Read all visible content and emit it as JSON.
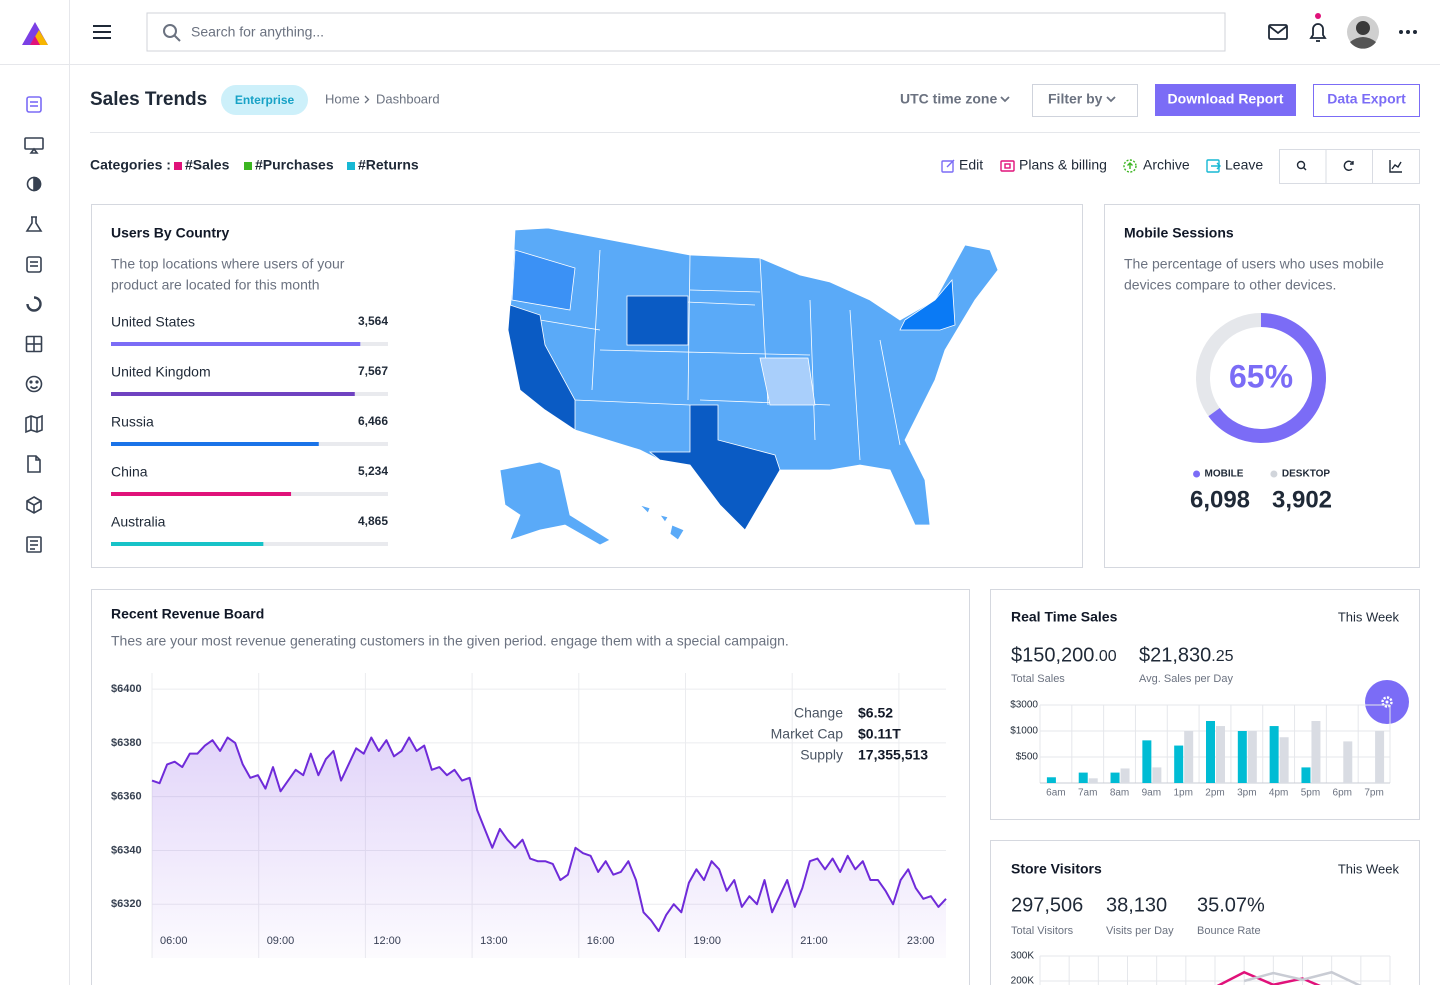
{
  "header": {
    "search_placeholder": "Search for anything..."
  },
  "page_header": {
    "title": "Sales Trends",
    "badge": "Enterprise",
    "breadcrumb": [
      "Home",
      "Dashboard"
    ],
    "timezone": "UTC time zone",
    "filter": "Filter by",
    "primary_button": "Download Report",
    "secondary_button": "Data Export"
  },
  "categories": {
    "label": "Categories :",
    "items": [
      {
        "name": "#Sales",
        "color": "#e0127a"
      },
      {
        "name": "#Purchases",
        "color": "#3cb521"
      },
      {
        "name": "#Returns",
        "color": "#17b8d4"
      }
    ]
  },
  "actions": [
    "Edit",
    "Plans & billing",
    "Archive",
    "Leave"
  ],
  "users_by_country": {
    "title": "Users By Country",
    "description": [
      "The top locations where users of your",
      "product are located for this month"
    ],
    "progress_range": [
      0,
      100
    ],
    "rows": [
      {
        "country": "United States",
        "users": "3,564",
        "progress": 90,
        "color": "#7b6cf6"
      },
      {
        "country": "United Kingdom",
        "users": "7,567",
        "progress": 88,
        "color": "#6f42c1"
      },
      {
        "country": "Russia",
        "users": "6,466",
        "progress": 75,
        "color": "#1a73e8"
      },
      {
        "country": "China",
        "users": "5,234",
        "progress": 65,
        "color": "#e0127a"
      },
      {
        "country": "Australia",
        "users": "4,865",
        "progress": 55,
        "color": "#17c3c8"
      }
    ]
  },
  "mobile_sessions": {
    "title": "Mobile Sessions",
    "description": [
      "The percentage of users who uses mobile",
      "devices compare to other devices."
    ],
    "chart": {
      "type": "donut",
      "value": 65,
      "value_label": "65%",
      "ylim": [
        0,
        100
      ],
      "color": "#7b6cf6",
      "track_color": "#e5e7eb"
    },
    "legend": [
      {
        "name": "MOBILE",
        "value": "6,098",
        "color": "#7b6cf6"
      },
      {
        "name": "DESKTOP",
        "value": "3,902",
        "color": "#d1d5db"
      }
    ]
  },
  "revenue_board": {
    "title": "Recent Revenue Board",
    "description": "Thes are your most revenue generating customers in the given period. engage them with a special campaign.",
    "chart": {
      "type": "line",
      "color": "#6f2bd9",
      "ylim": [
        6300,
        6406
      ],
      "yticks": [
        {
          "value": 6320,
          "label": "$6320"
        },
        {
          "value": 6340,
          "label": "$6340"
        },
        {
          "value": 6360,
          "label": "$6360"
        },
        {
          "value": 6380,
          "label": "$6380"
        },
        {
          "value": 6400,
          "label": "$6400"
        }
      ],
      "xticks": [
        "06:00",
        "09:00",
        "12:00",
        "13:00",
        "16:00",
        "19:00",
        "21:00",
        "23:00"
      ],
      "values": [
        6366,
        6365,
        6372,
        6373,
        6371,
        6376,
        6376,
        6379,
        6381,
        6377,
        6382,
        6380,
        6372,
        6367,
        6368,
        6363,
        6371,
        6362,
        6366,
        6370,
        6368,
        6376,
        6368,
        6374,
        6377,
        6366,
        6372,
        6378,
        6376,
        6382,
        6377,
        6381,
        6375,
        6377,
        6382,
        6377,
        6379,
        6370,
        6371,
        6368,
        6370,
        6366,
        6367,
        6355,
        6348,
        6341,
        6348,
        6344,
        6341,
        6344,
        6337,
        6336,
        6336,
        6335,
        6329,
        6331,
        6341,
        6339,
        6338,
        6332,
        6336,
        6331,
        6332,
        6336,
        6329,
        6317,
        6314,
        6310,
        6316,
        6320,
        6317,
        6328,
        6333,
        6329,
        6336,
        6333,
        6325,
        6329,
        6319,
        6323,
        6320,
        6329,
        6317,
        6323,
        6329,
        6319,
        6326,
        6336,
        6337,
        6333,
        6337,
        6332,
        6338,
        6333,
        6336,
        6329,
        6329,
        6325,
        6320,
        6329,
        6333,
        6326,
        6322,
        6323,
        6319,
        6322
      ]
    },
    "stats": [
      {
        "label": "Change",
        "value": "$6.52"
      },
      {
        "label": "Market Cap",
        "value": "$0.11T"
      },
      {
        "label": "Supply",
        "value": "17,355,513"
      }
    ]
  },
  "real_time_sales": {
    "title": "Real Time Sales",
    "period": "This Week",
    "stats": [
      {
        "whole": "$150,200",
        "fraction": ".00",
        "label": "Total Sales"
      },
      {
        "whole": "$21,830",
        "fraction": ".25",
        "label": "Avg. Sales per Day"
      }
    ],
    "chart": {
      "type": "bar",
      "ylim": [
        0,
        3000
      ],
      "yticks": [
        {
          "value": 500,
          "label": "$500"
        },
        {
          "value": 1000,
          "label": "$1000"
        },
        {
          "value": 3000,
          "label": "$3000"
        }
      ],
      "categories": [
        "6am",
        "7am",
        "8am",
        "9am",
        "1pm",
        "2pm",
        "3pm",
        "4pm",
        "5pm",
        "6pm",
        "7pm"
      ],
      "series": [
        {
          "color": "#00bcd4",
          "values": [
            110,
            200,
            200,
            820,
            720,
            1770,
            1000,
            1380,
            300,
            0,
            0
          ]
        },
        {
          "color": "#d9dce3",
          "values": [
            0,
            90,
            280,
            300,
            1000,
            1380,
            1000,
            880,
            1770,
            800,
            1000
          ]
        }
      ]
    }
  },
  "store_visitors": {
    "title": "Store Visitors",
    "period": "This Week",
    "stats": [
      {
        "value": "297,506",
        "label": "Total Visitors"
      },
      {
        "value": "38,130",
        "label": "Visits per Day"
      },
      {
        "value": "35.07%",
        "label": "Bounce Rate"
      }
    ],
    "chart": {
      "type": "line",
      "ylim": [
        0,
        300000
      ],
      "yticks": [
        {
          "value": 300000,
          "label": "300K"
        },
        {
          "value": 200000,
          "label": "200K"
        }
      ],
      "series": [
        {
          "color": "#e0127a",
          "values": [
            null,
            null,
            null,
            null,
            null,
            null,
            175000,
            235000,
            185000,
            210000,
            160000,
            null
          ]
        },
        {
          "color": "#c9ccd4",
          "values": [
            null,
            null,
            null,
            null,
            null,
            null,
            null,
            200000,
            232000,
            205000,
            235000,
            180000
          ]
        }
      ]
    }
  }
}
